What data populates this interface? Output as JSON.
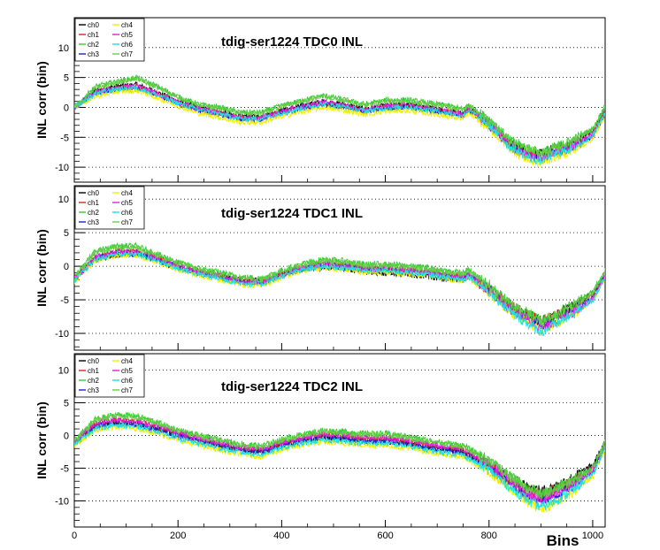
{
  "figure": {
    "xlabel": "Bins",
    "xlim": [
      0,
      1024
    ],
    "x_ticks": [
      0,
      200,
      400,
      600,
      800,
      1000
    ],
    "x_tick_labels": [
      "0",
      "200",
      "400",
      "600",
      "800",
      "1000"
    ],
    "colors": {
      "ch0": "#000000",
      "ch1": "#e02020",
      "ch2": "#33cc33",
      "ch3": "#2020cc",
      "ch4": "#f0f000",
      "ch5": "#e020e0",
      "ch6": "#20e0e0",
      "ch7": "#66cc44"
    }
  },
  "chart_data": [
    {
      "type": "line",
      "title": "tdig-ser1224 TDC0 INL",
      "xlabel": "Bins",
      "ylabel": "INL corr (bin)",
      "xlim": [
        0,
        1024
      ],
      "ylim": [
        -12.5,
        15
      ],
      "y_ticks": [
        -10,
        -5,
        0,
        5,
        10
      ],
      "y_tick_labels": [
        "-10",
        "-5",
        "0",
        "5",
        "10"
      ],
      "grid": "horizontal dotted",
      "legend_position": "top-left",
      "legend": [
        "ch0",
        "ch1",
        "ch2",
        "ch3",
        "ch4",
        "ch5",
        "ch6",
        "ch7"
      ],
      "x": [
        0,
        40,
        80,
        120,
        160,
        200,
        240,
        280,
        320,
        360,
        400,
        440,
        480,
        520,
        560,
        600,
        640,
        680,
        720,
        750,
        760,
        800,
        840,
        880,
        900,
        920,
        960,
        1000,
        1024
      ],
      "series": [
        {
          "name": "ch0",
          "values": [
            0,
            2.8,
            3.5,
            3.8,
            2.5,
            1.0,
            0,
            -0.8,
            -1.5,
            -1.5,
            -0.5,
            0.3,
            1.0,
            0.5,
            -0.3,
            0.3,
            0.5,
            0,
            -0.5,
            -1.0,
            0,
            -2.5,
            -6.0,
            -7.5,
            -7.8,
            -7.0,
            -6.0,
            -4.0,
            0
          ]
        },
        {
          "name": "ch1",
          "values": [
            0,
            2.5,
            3.2,
            3.5,
            2.2,
            0.8,
            -0.3,
            -1.0,
            -1.8,
            -1.8,
            -0.8,
            0,
            0.7,
            0.2,
            -0.5,
            0,
            0.2,
            -0.3,
            -0.8,
            -1.2,
            -0.3,
            -2.8,
            -6.3,
            -8.0,
            -8.3,
            -7.5,
            -6.5,
            -4.5,
            -0.5
          ]
        },
        {
          "name": "ch2",
          "values": [
            0,
            3.5,
            4.3,
            5.0,
            3.5,
            1.8,
            0.5,
            0,
            -0.8,
            -0.8,
            0.3,
            1.2,
            2.0,
            1.3,
            0.5,
            1.2,
            1.3,
            0.8,
            0.3,
            -0.3,
            0.5,
            -2.0,
            -5.5,
            -7.0,
            -7.5,
            -6.8,
            -5.5,
            -3.5,
            0.3
          ]
        },
        {
          "name": "ch3",
          "values": [
            0,
            2.2,
            3.0,
            3.2,
            2.0,
            0.6,
            -0.5,
            -1.2,
            -2.0,
            -2.0,
            -1.0,
            -0.2,
            0.5,
            0,
            -0.7,
            -0.2,
            0,
            -0.5,
            -1.0,
            -1.4,
            -0.5,
            -3.0,
            -6.5,
            -8.3,
            -8.6,
            -7.8,
            -6.8,
            -4.8,
            -0.8
          ]
        },
        {
          "name": "ch4",
          "values": [
            0,
            1.8,
            2.6,
            2.8,
            1.6,
            0.2,
            -1.0,
            -1.7,
            -2.5,
            -2.5,
            -1.5,
            -0.7,
            0,
            -0.5,
            -1.2,
            -0.7,
            -0.5,
            -1.0,
            -1.5,
            -1.9,
            -1.0,
            -3.5,
            -7.0,
            -9.0,
            -9.3,
            -8.5,
            -7.3,
            -5.3,
            -1.2
          ]
        },
        {
          "name": "ch5",
          "values": [
            0,
            2.6,
            3.3,
            3.6,
            2.3,
            0.9,
            -0.2,
            -0.9,
            -1.7,
            -1.7,
            -0.6,
            0.2,
            0.9,
            0.4,
            -0.4,
            0.2,
            0.4,
            -0.1,
            -0.6,
            -1.1,
            -0.2,
            -2.7,
            -6.2,
            -8.0,
            -8.5,
            -7.6,
            -6.4,
            -4.4,
            -0.4
          ]
        },
        {
          "name": "ch6",
          "values": [
            0,
            2.3,
            3.1,
            3.3,
            2.1,
            0.7,
            -0.4,
            -1.1,
            -1.9,
            -1.9,
            -0.9,
            -0.1,
            0.6,
            0.1,
            -0.6,
            -0.1,
            0.1,
            -0.4,
            -0.9,
            -1.3,
            -0.4,
            -2.9,
            -6.6,
            -8.5,
            -8.9,
            -8.0,
            -6.8,
            -4.7,
            -0.7
          ]
        },
        {
          "name": "ch7",
          "values": [
            0,
            3.3,
            4.1,
            4.8,
            3.3,
            1.6,
            0.3,
            -0.2,
            -1.0,
            -1.0,
            0.1,
            1.0,
            1.8,
            1.1,
            0.3,
            1.0,
            1.1,
            0.6,
            0.1,
            -0.5,
            0.3,
            -2.2,
            -5.7,
            -7.2,
            -7.7,
            -7.0,
            -5.7,
            -3.7,
            0.1
          ]
        }
      ]
    },
    {
      "type": "line",
      "title": "tdig-ser1224 TDC1 INL",
      "xlabel": "Bins",
      "ylabel": "INL corr (bin)",
      "xlim": [
        0,
        1024
      ],
      "ylim": [
        -12.5,
        12
      ],
      "y_ticks": [
        -10,
        -5,
        0,
        5,
        10
      ],
      "y_tick_labels": [
        "-10",
        "-5",
        "0",
        "5",
        "10"
      ],
      "grid": "horizontal dotted",
      "legend_position": "top-left",
      "legend": [
        "ch0",
        "ch1",
        "ch2",
        "ch3",
        "ch4",
        "ch5",
        "ch6",
        "ch7"
      ],
      "x": [
        0,
        40,
        80,
        120,
        160,
        200,
        240,
        280,
        320,
        360,
        400,
        440,
        480,
        520,
        560,
        600,
        640,
        680,
        720,
        750,
        760,
        800,
        840,
        880,
        900,
        920,
        960,
        1000,
        1024
      ],
      "series": [
        {
          "name": "ch0",
          "values": [
            -2.0,
            1.0,
            1.8,
            1.8,
            0.8,
            -0.2,
            -1.0,
            -1.5,
            -2.0,
            -2.2,
            -1.2,
            -0.5,
            -0.2,
            -0.3,
            -0.8,
            -1.0,
            -1.2,
            -1.5,
            -2.0,
            -2.0,
            -1.5,
            -3.5,
            -6.0,
            -7.5,
            -8.0,
            -7.5,
            -6.0,
            -4.0,
            -1.0
          ]
        },
        {
          "name": "ch1",
          "values": [
            -1.8,
            1.4,
            2.2,
            2.2,
            1.2,
            0.1,
            -0.8,
            -1.4,
            -2.1,
            -2.3,
            -1.1,
            -0.1,
            0.4,
            0.2,
            -0.3,
            -0.3,
            -0.5,
            -0.8,
            -1.3,
            -1.5,
            -1.0,
            -3.2,
            -5.8,
            -7.4,
            -8.1,
            -7.6,
            -6.1,
            -4.1,
            -1.0
          ]
        },
        {
          "name": "ch2",
          "values": [
            -1.5,
            2.2,
            3.0,
            3.0,
            1.8,
            0.6,
            -0.3,
            -0.9,
            -1.6,
            -1.8,
            -0.6,
            0.4,
            1.0,
            0.8,
            0.3,
            0.3,
            0.1,
            -0.2,
            -0.7,
            -1.0,
            -0.5,
            -2.8,
            -5.5,
            -7.2,
            -8.0,
            -7.4,
            -5.8,
            -3.8,
            -0.6
          ]
        },
        {
          "name": "ch3",
          "values": [
            -2.0,
            1.2,
            2.0,
            2.0,
            1.0,
            -0.1,
            -1.0,
            -1.6,
            -2.3,
            -2.5,
            -1.3,
            -0.3,
            0.2,
            0,
            -0.5,
            -0.5,
            -0.7,
            -1.0,
            -1.5,
            -1.8,
            -1.3,
            -3.6,
            -6.3,
            -8.0,
            -8.8,
            -8.2,
            -6.6,
            -4.6,
            -1.4
          ]
        },
        {
          "name": "ch4",
          "values": [
            -2.2,
            0.8,
            1.6,
            1.6,
            0.6,
            -0.5,
            -1.4,
            -2.0,
            -2.7,
            -2.9,
            -1.7,
            -0.7,
            -0.2,
            -0.4,
            -0.9,
            -0.9,
            -1.1,
            -1.4,
            -1.9,
            -2.2,
            -1.7,
            -4.0,
            -6.8,
            -8.6,
            -9.5,
            -8.8,
            -7.2,
            -5.0,
            -1.6
          ]
        },
        {
          "name": "ch5",
          "values": [
            -1.9,
            1.3,
            2.1,
            2.1,
            1.1,
            0,
            -0.9,
            -1.5,
            -2.2,
            -2.4,
            -1.2,
            -0.2,
            0.3,
            0.1,
            -0.4,
            -0.4,
            -0.6,
            -0.9,
            -1.4,
            -1.7,
            -1.2,
            -3.5,
            -6.3,
            -8.2,
            -9.2,
            -8.5,
            -6.9,
            -4.8,
            -1.3
          ]
        },
        {
          "name": "ch6",
          "values": [
            -2.1,
            1.0,
            1.8,
            1.8,
            0.8,
            -0.3,
            -1.2,
            -1.8,
            -2.5,
            -2.7,
            -1.5,
            -0.5,
            0,
            -0.2,
            -0.7,
            -0.7,
            -0.9,
            -1.2,
            -1.7,
            -2.0,
            -1.5,
            -3.8,
            -6.8,
            -8.8,
            -9.8,
            -9.0,
            -7.2,
            -5.0,
            -1.5
          ]
        },
        {
          "name": "ch7",
          "values": [
            -1.6,
            2.0,
            2.8,
            2.8,
            1.6,
            0.4,
            -0.5,
            -1.1,
            -1.8,
            -2.0,
            -0.8,
            0.2,
            0.8,
            0.6,
            0.1,
            0.1,
            -0.1,
            -0.4,
            -0.9,
            -1.2,
            -0.7,
            -3.0,
            -5.7,
            -7.4,
            -8.2,
            -7.6,
            -6.0,
            -4.0,
            -0.8
          ]
        }
      ]
    },
    {
      "type": "line",
      "title": "tdig-ser1224 TDC2 INL",
      "xlabel": "Bins",
      "ylabel": "INL corr (bin)",
      "xlim": [
        0,
        1024
      ],
      "ylim": [
        -14,
        12.5
      ],
      "y_ticks": [
        -10,
        -5,
        0,
        5,
        10
      ],
      "y_tick_labels": [
        "-10",
        "-5",
        "0",
        "5",
        "10"
      ],
      "grid": "horizontal dotted",
      "legend_position": "top-left",
      "legend": [
        "ch0",
        "ch1",
        "ch2",
        "ch3",
        "ch4",
        "ch5",
        "ch6",
        "ch7"
      ],
      "x": [
        0,
        40,
        80,
        120,
        160,
        200,
        240,
        280,
        320,
        360,
        400,
        440,
        480,
        520,
        560,
        600,
        640,
        680,
        720,
        750,
        760,
        800,
        840,
        880,
        900,
        920,
        960,
        1000,
        1024
      ],
      "series": [
        {
          "name": "ch0",
          "values": [
            -1.0,
            1.5,
            2.0,
            1.8,
            1.0,
            0,
            -0.8,
            -1.5,
            -2.2,
            -2.5,
            -1.5,
            -0.8,
            -0.3,
            -0.5,
            -0.8,
            -0.8,
            -1.2,
            -1.8,
            -2.2,
            -2.5,
            -3.0,
            -4.5,
            -6.5,
            -8.0,
            -8.5,
            -8.0,
            -6.5,
            -4.5,
            -1.0
          ]
        },
        {
          "name": "ch1",
          "values": [
            -1.0,
            1.8,
            2.3,
            2.1,
            1.3,
            0.3,
            -0.6,
            -1.3,
            -2.0,
            -2.3,
            -1.3,
            -0.5,
            0,
            -0.2,
            -0.5,
            -0.5,
            -0.9,
            -1.5,
            -2.0,
            -2.3,
            -2.8,
            -4.5,
            -6.8,
            -8.5,
            -9.0,
            -8.5,
            -7.0,
            -5.0,
            -1.3
          ]
        },
        {
          "name": "ch2",
          "values": [
            -0.8,
            2.5,
            3.2,
            3.0,
            2.0,
            0.8,
            0,
            -0.6,
            -1.3,
            -1.6,
            -0.6,
            0.2,
            0.8,
            0.6,
            0.3,
            0.3,
            -0.1,
            -0.7,
            -1.2,
            -1.5,
            -2.0,
            -3.8,
            -6.2,
            -8.2,
            -8.9,
            -8.4,
            -6.8,
            -4.8,
            -0.8
          ]
        },
        {
          "name": "ch3",
          "values": [
            -1.2,
            1.4,
            1.9,
            1.7,
            0.9,
            -0.1,
            -0.9,
            -1.6,
            -2.3,
            -2.6,
            -1.6,
            -0.9,
            -0.4,
            -0.6,
            -0.9,
            -0.9,
            -1.3,
            -1.9,
            -2.4,
            -2.7,
            -3.2,
            -5.0,
            -7.5,
            -9.5,
            -10.0,
            -9.5,
            -7.8,
            -5.5,
            -1.5
          ]
        },
        {
          "name": "ch4",
          "values": [
            -1.5,
            0.8,
            1.3,
            1.1,
            0.3,
            -0.7,
            -1.5,
            -2.2,
            -2.9,
            -3.2,
            -2.2,
            -1.5,
            -1.0,
            -1.2,
            -1.5,
            -1.5,
            -1.9,
            -2.5,
            -3.0,
            -3.3,
            -3.8,
            -5.6,
            -8.2,
            -10.5,
            -11.2,
            -10.6,
            -8.8,
            -6.2,
            -2.0
          ]
        },
        {
          "name": "ch5",
          "values": [
            -1.0,
            1.9,
            2.4,
            2.2,
            1.4,
            0.4,
            -0.4,
            -1.1,
            -1.8,
            -2.1,
            -1.1,
            -0.3,
            0.2,
            0,
            -0.3,
            -0.3,
            -0.7,
            -1.3,
            -1.8,
            -2.1,
            -2.6,
            -4.5,
            -7.0,
            -9.2,
            -10.0,
            -9.4,
            -7.6,
            -5.3,
            -1.3
          ]
        },
        {
          "name": "ch6",
          "values": [
            -1.3,
            1.1,
            1.6,
            1.4,
            0.6,
            -0.4,
            -1.2,
            -1.9,
            -2.6,
            -2.9,
            -1.9,
            -1.2,
            -0.7,
            -0.9,
            -1.2,
            -1.2,
            -1.6,
            -2.2,
            -2.7,
            -3.0,
            -3.5,
            -5.3,
            -7.9,
            -10.2,
            -10.9,
            -10.3,
            -8.4,
            -5.9,
            -1.8
          ]
        },
        {
          "name": "ch7",
          "values": [
            -0.8,
            2.3,
            3.0,
            2.8,
            1.8,
            0.7,
            -0.1,
            -0.8,
            -1.5,
            -1.8,
            -0.8,
            0,
            0.6,
            0.4,
            0.1,
            0.1,
            -0.3,
            -0.9,
            -1.4,
            -1.7,
            -2.2,
            -4.0,
            -6.4,
            -8.4,
            -9.1,
            -8.6,
            -7.0,
            -5.0,
            -1.0
          ]
        }
      ]
    }
  ]
}
